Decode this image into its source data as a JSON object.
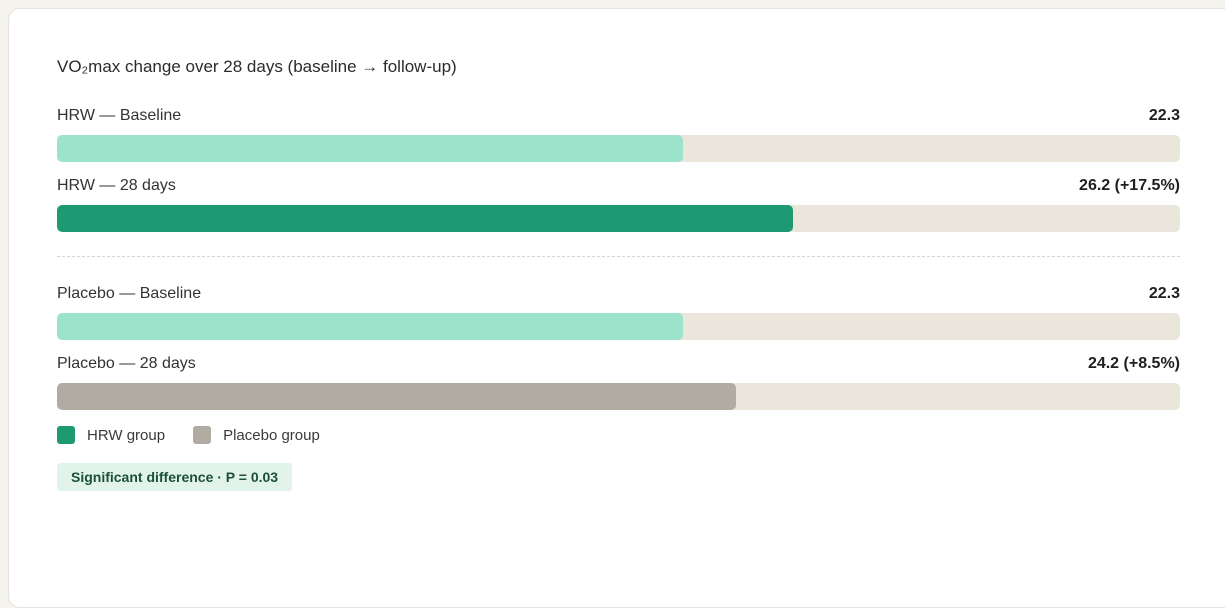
{
  "chart_data": {
    "type": "bar",
    "title": "VO₂max change over 28 days (baseline → follow-up)",
    "xlim": [
      0,
      40
    ],
    "bars": [
      {
        "label": "HRW — Baseline",
        "value": 22.3,
        "value_label": "22.3",
        "color": "#9be3cb",
        "group": "hrw"
      },
      {
        "label": "HRW — 28 days",
        "value": 26.2,
        "value_label": "26.2 (+17.5%)",
        "color": "#1d9a72",
        "group": "hrw"
      },
      {
        "label": "Placebo — Baseline",
        "value": 22.3,
        "value_label": "22.3",
        "color": "#9be3cb",
        "group": "placebo"
      },
      {
        "label": "Placebo — 28 days",
        "value": 24.2,
        "value_label": "24.2 (+8.5%)",
        "color": "#b1aca2",
        "group": "placebo"
      }
    ],
    "legend": [
      {
        "name": "HRW group",
        "color": "#1d9a72"
      },
      {
        "name": "Placebo group",
        "color": "#b1aca2"
      }
    ],
    "annotation": "Significant difference · P = 0.03"
  },
  "colors": {
    "track": "#ebe6dc",
    "badge_bg": "#e2f4ea",
    "badge_text": "#1c4f3a"
  }
}
